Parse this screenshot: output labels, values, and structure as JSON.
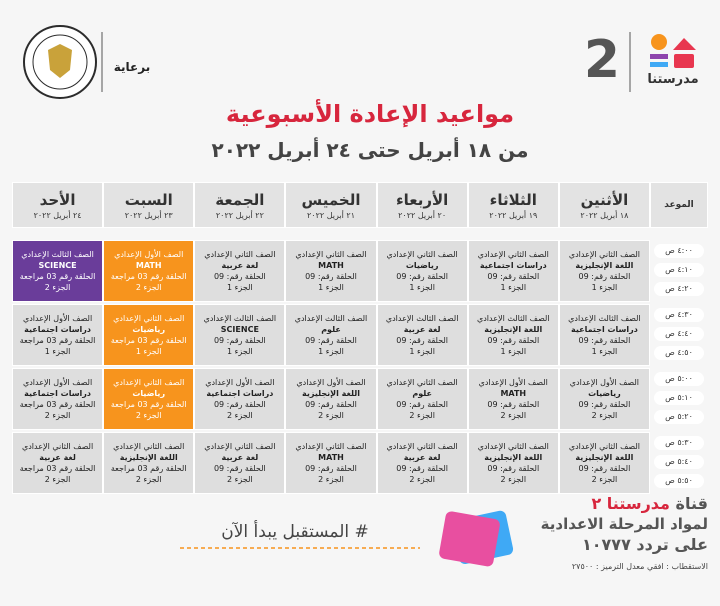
{
  "header": {
    "sponsor": "برعاية",
    "channel_logo": "مدرستنا",
    "channel_number": "2"
  },
  "title": "مواعيد الإعادة الأسبوعية",
  "subtitle": "من ١٨ أبريل حتى ٢٤ أبريل ٢٠٢٢",
  "table": {
    "time_header": "الموعد",
    "days": [
      {
        "name": "الأثنين",
        "date": "١٨ أبريل ٢٠٢٢"
      },
      {
        "name": "الثلاثاء",
        "date": "١٩ أبريل ٢٠٢٢"
      },
      {
        "name": "الأربعاء",
        "date": "٢٠ أبريل ٢٠٢٢"
      },
      {
        "name": "الخميس",
        "date": "٢١ أبريل ٢٠٢٢"
      },
      {
        "name": "الجمعة",
        "date": "٢٢ أبريل ٢٠٢٢"
      },
      {
        "name": "السبت",
        "date": "٢٣ أبريل ٢٠٢٢"
      },
      {
        "name": "الأحد",
        "date": "٢٤ أبريل ٢٠٢٢"
      }
    ],
    "times": [
      "٤:٠٠ ص",
      "٤:١٠ ص",
      "٤:٢٠ ص",
      "٤:٣٠ ص",
      "٤:٤٠ ص",
      "٤:٥٠ ص",
      "٥:٠٠ ص",
      "٥:١٠ ص",
      "٥:٢٠ ص",
      "٥:٣٠ ص",
      "٥:٤٠ ص",
      "٥:٥٠ ص"
    ],
    "blocks": [
      [
        {
          "lines": [
            "الصف الثاني الإعدادي",
            "اللغة الإنجليزية",
            "الحلقة رقم: 09",
            "الجزء 1"
          ]
        },
        {
          "lines": [
            "الصف الثاني الإعدادي",
            "دراسات اجتماعية",
            "الحلقة رقم: 09",
            "الجزء 1"
          ]
        },
        {
          "lines": [
            "الصف الثاني الإعدادي",
            "رياضيات",
            "الحلقة رقم: 09",
            "الجزء 1"
          ]
        },
        {
          "lines": [
            "الصف الثاني الإعدادي",
            "MATH",
            "الحلقة رقم: 09",
            "الجزء 1"
          ]
        },
        {
          "lines": [
            "الصف الثاني الإعدادي",
            "لغة عربية",
            "الحلقة رقم: 09",
            "الجزء 1"
          ]
        },
        {
          "lines": [
            "الصف الأول الإعدادي",
            "MATH",
            "الحلقة رقم 03 مراجعة",
            "الجزء 2"
          ],
          "color": "#f7941d"
        },
        {
          "lines": [
            "الصف الثالث الإعدادي",
            "SCIENCE",
            "الحلقة رقم 03 مراجعة",
            "الجزء 2"
          ],
          "color": "#6a3d9a"
        }
      ],
      [
        {
          "lines": [
            "الصف الثالث الإعدادي",
            "دراسات اجتماعية",
            "الحلقة رقم: 09",
            "الجزء 1"
          ]
        },
        {
          "lines": [
            "الصف الثالث الإعدادي",
            "اللغة الإنجليزية",
            "الحلقة رقم: 09",
            "الجزء 1"
          ]
        },
        {
          "lines": [
            "الصف الثالث الإعدادي",
            "لغة عربية",
            "الحلقة رقم: 09",
            "الجزء 1"
          ]
        },
        {
          "lines": [
            "الصف الثالث الإعدادي",
            "علوم",
            "الحلقة رقم: 09",
            "الجزء 1"
          ]
        },
        {
          "lines": [
            "الصف الثالث الإعدادي",
            "SCIENCE",
            "الحلقة رقم: 09",
            "الجزء 1"
          ]
        },
        {
          "lines": [
            "الصف الثاني الإعدادي",
            "رياضيات",
            "الحلقة رقم 03 مراجعة",
            "الجزء 1"
          ],
          "color": "#f7941d"
        },
        {
          "lines": [
            "الصف الأول الإعدادي",
            "دراسات اجتماعية",
            "الحلقة رقم 03 مراجعة",
            "الجزء 1"
          ]
        }
      ],
      [
        {
          "lines": [
            "الصف الأول الإعدادي",
            "رياضيات",
            "الحلقة رقم: 09",
            "الجزء 2"
          ]
        },
        {
          "lines": [
            "الصف الأول الإعدادي",
            "MATH",
            "الحلقة رقم: 09",
            "الجزء 2"
          ]
        },
        {
          "lines": [
            "الصف الثاني الإعدادي",
            "علوم",
            "الحلقة رقم: 09",
            "الجزء 2"
          ]
        },
        {
          "lines": [
            "الصف الأول الإعدادي",
            "اللغة الإنجليزية",
            "الحلقة رقم: 09",
            "الجزء 2"
          ]
        },
        {
          "lines": [
            "الصف الأول الإعدادي",
            "دراسات اجتماعية",
            "الحلقة رقم: 09",
            "الجزء 2"
          ]
        },
        {
          "lines": [
            "الصف الثاني الإعدادي",
            "رياضيات",
            "الحلقة رقم 03 مراجعة",
            "الجزء 2"
          ],
          "color": "#f7941d"
        },
        {
          "lines": [
            "الصف الأول الإعدادي",
            "دراسات اجتماعية",
            "الحلقة رقم 03 مراجعة",
            "الجزء 2"
          ]
        }
      ],
      [
        {
          "lines": [
            "الصف الثاني الإعدادي",
            "اللغة الإنجليزية",
            "الحلقة رقم: 09",
            "الجزء 2"
          ]
        },
        {
          "lines": [
            "الصف الثاني الإعدادي",
            "اللغة الإنجليزية",
            "الحلقة رقم: 09",
            "الجزء 2"
          ]
        },
        {
          "lines": [
            "الصف الثاني الإعدادي",
            "لغة عربية",
            "الحلقة رقم: 09",
            "الجزء 2"
          ]
        },
        {
          "lines": [
            "الصف الثاني الإعدادي",
            "MATH",
            "الحلقة رقم: 09",
            "الجزء 2"
          ]
        },
        {
          "lines": [
            "الصف الثاني الإعدادي",
            "لغة عربية",
            "الحلقة رقم: 09",
            "الجزء 2"
          ]
        },
        {
          "lines": [
            "الصف الثاني الإعدادي",
            "اللغة الإنجليزية",
            "الحلقة رقم 03 مراجعة",
            "الجزء 2"
          ]
        },
        {
          "lines": [
            "الصف الثاني الإعدادي",
            "لغة عربية",
            "الحلقة رقم 03 مراجعة",
            "الجزء 2"
          ]
        }
      ]
    ]
  },
  "footer": {
    "channel_label": "قناة",
    "channel_name": "مدرستنا ٢",
    "subjects": "لمواد المرحلة الاعدادية",
    "frequency": "على تردد ١٠٧٧٧",
    "polarization": "الاستقطاب : افقي معدل الترميز : ٢٧٥٠٠",
    "hashtag": "# المستقبل يبدأ الآن"
  }
}
